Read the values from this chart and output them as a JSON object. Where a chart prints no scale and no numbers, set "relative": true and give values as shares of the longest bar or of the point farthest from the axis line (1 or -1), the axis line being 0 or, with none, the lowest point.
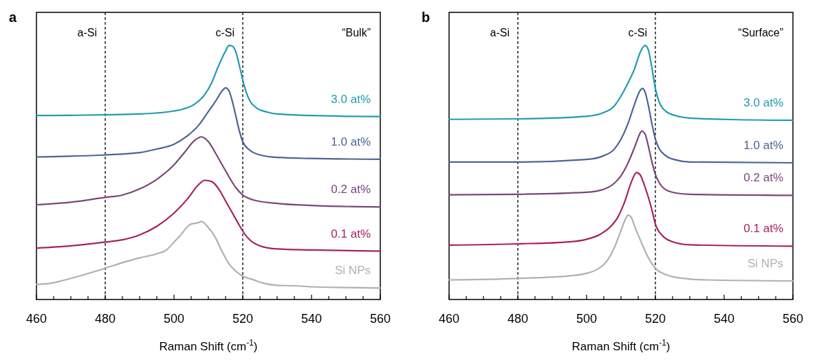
{
  "chart_data": [
    {
      "type": "line",
      "title": "a",
      "xlabel": "Raman Shift (cm$^{-1}$)",
      "relative": true,
      "xlim": [
        460,
        560
      ],
      "xticks": [
        460,
        {
          "value": 465,
          "label": null
        },
        {
          "value": 470,
          "label": null
        },
        {
          "value": 475,
          "label": null
        },
        480,
        {
          "value": 485,
          "label": null
        },
        {
          "value": 490,
          "label": null
        },
        {
          "value": 495,
          "label": null
        },
        500,
        {
          "value": 505,
          "label": null
        },
        {
          "value": 510,
          "label": null
        },
        {
          "value": 515,
          "label": null
        },
        520,
        {
          "value": 525,
          "label": null
        },
        {
          "value": 530,
          "label": null
        },
        {
          "value": 535,
          "label": null
        },
        540,
        {
          "value": 545,
          "label": null
        },
        {
          "value": 550,
          "label": null
        },
        {
          "value": 555,
          "label": null
        },
        560
      ],
      "ref_lines": [
        {
          "axis": "x",
          "value": 480,
          "label": "a-Si",
          "line_style": "dashed",
          "color": "#000000"
        },
        {
          "axis": "x",
          "value": 520,
          "label": "c-Si",
          "line_style": "dashed",
          "color": "#000000"
        }
      ],
      "annotations": [
        "“Bulk”"
      ],
      "series": [
        {
          "name": "3.0 at%",
          "color": "#1f9bb0",
          "x": [
            460,
            470,
            480,
            490,
            495,
            500,
            503,
            506,
            509,
            511,
            513,
            515,
            516,
            517,
            518,
            519,
            520,
            521,
            522,
            524,
            527,
            530,
            540,
            550,
            560
          ],
          "values": [
            0.724,
            0.725,
            0.727,
            0.73,
            0.734,
            0.742,
            0.751,
            0.769,
            0.807,
            0.854,
            0.921,
            0.978,
            1.0,
            0.997,
            0.974,
            0.921,
            0.864,
            0.816,
            0.783,
            0.754,
            0.738,
            0.73,
            0.724,
            0.721,
            0.72
          ]
        },
        {
          "name": "1.0 at%",
          "color": "#4a6494",
          "x": [
            460,
            470,
            480,
            490,
            495,
            500,
            504,
            507,
            510,
            512,
            514,
            515,
            516,
            517,
            518,
            519,
            520,
            522,
            525,
            530,
            540,
            560
          ],
          "values": [
            0.561,
            0.564,
            0.569,
            0.578,
            0.592,
            0.611,
            0.645,
            0.683,
            0.74,
            0.778,
            0.821,
            0.833,
            0.821,
            0.778,
            0.721,
            0.664,
            0.621,
            0.588,
            0.569,
            0.559,
            0.555,
            0.552
          ]
        },
        {
          "name": "0.2 at%",
          "color": "#7a4679",
          "x": [
            460,
            470,
            480,
            485,
            490,
            495,
            500,
            503,
            506,
            508,
            510,
            512,
            514,
            516,
            518,
            520,
            523,
            530,
            540,
            560
          ],
          "values": [
            0.373,
            0.383,
            0.402,
            0.411,
            0.435,
            0.473,
            0.53,
            0.578,
            0.626,
            0.64,
            0.621,
            0.578,
            0.53,
            0.483,
            0.44,
            0.411,
            0.392,
            0.378,
            0.37,
            0.364
          ]
        },
        {
          "name": "0.1 at%",
          "color": "#a82060",
          "x": [
            460,
            470,
            480,
            485,
            490,
            495,
            500,
            504,
            507,
            509,
            511,
            513,
            515,
            517,
            519,
            520,
            522,
            525,
            530,
            540,
            560
          ],
          "values": [
            0.202,
            0.211,
            0.226,
            0.235,
            0.254,
            0.288,
            0.34,
            0.397,
            0.45,
            0.469,
            0.464,
            0.435,
            0.388,
            0.34,
            0.292,
            0.269,
            0.235,
            0.211,
            0.199,
            0.195,
            0.19
          ]
        },
        {
          "name": "Si NPs",
          "color": "#b0b0b0",
          "x": [
            460,
            465,
            470,
            475,
            480,
            485,
            490,
            495,
            498,
            500,
            502,
            504,
            505,
            507,
            508,
            510,
            512,
            514,
            516,
            518,
            520,
            523,
            526,
            530,
            535,
            540,
            550,
            560
          ],
          "values": [
            0.059,
            0.066,
            0.083,
            0.102,
            0.123,
            0.145,
            0.164,
            0.18,
            0.197,
            0.226,
            0.254,
            0.288,
            0.297,
            0.302,
            0.307,
            0.283,
            0.245,
            0.188,
            0.14,
            0.111,
            0.092,
            0.078,
            0.064,
            0.056,
            0.054,
            0.05,
            0.047,
            0.045
          ]
        }
      ]
    },
    {
      "type": "line",
      "title": "b",
      "xlabel": "Raman Shift (cm$^{-1}$)",
      "relative": true,
      "xlim": [
        460,
        560
      ],
      "xticks": [
        460,
        {
          "value": 465,
          "label": null
        },
        {
          "value": 470,
          "label": null
        },
        {
          "value": 475,
          "label": null
        },
        480,
        {
          "value": 485,
          "label": null
        },
        {
          "value": 490,
          "label": null
        },
        {
          "value": 495,
          "label": null
        },
        500,
        {
          "value": 505,
          "label": null
        },
        {
          "value": 510,
          "label": null
        },
        {
          "value": 515,
          "label": null
        },
        520,
        {
          "value": 525,
          "label": null
        },
        {
          "value": 530,
          "label": null
        },
        {
          "value": 535,
          "label": null
        },
        540,
        {
          "value": 545,
          "label": null
        },
        {
          "value": 550,
          "label": null
        },
        {
          "value": 555,
          "label": null
        },
        560
      ],
      "ref_lines": [
        {
          "axis": "x",
          "value": 480,
          "label": "a-Si",
          "line_style": "dashed",
          "color": "#000000"
        },
        {
          "axis": "x",
          "value": 520,
          "label": "c-Si",
          "line_style": "dashed",
          "color": "#000000"
        }
      ],
      "annotations": [
        "“Surface”"
      ],
      "series": [
        {
          "name": "3.0 at%",
          "color": "#1f9bb0",
          "x": [
            460,
            480,
            500,
            505,
            508,
            510,
            512,
            514,
            515.5,
            517,
            518,
            519,
            520,
            521,
            523,
            526,
            530,
            540,
            560
          ],
          "values": [
            0.709,
            0.711,
            0.721,
            0.736,
            0.761,
            0.801,
            0.851,
            0.91,
            0.97,
            1.0,
            0.98,
            0.91,
            0.83,
            0.781,
            0.741,
            0.723,
            0.714,
            0.709,
            0.705
          ]
        },
        {
          "name": "1.0 at%",
          "color": "#4a6494",
          "x": [
            460,
            480,
            500,
            505,
            508,
            510,
            512,
            514,
            515.5,
            516.3,
            517,
            518,
            519,
            520,
            521,
            523,
            526,
            530,
            560
          ],
          "values": [
            0.541,
            0.541,
            0.551,
            0.566,
            0.591,
            0.631,
            0.691,
            0.771,
            0.821,
            0.831,
            0.816,
            0.761,
            0.691,
            0.631,
            0.596,
            0.566,
            0.549,
            0.541,
            0.538
          ]
        },
        {
          "name": "0.2 at%",
          "color": "#7a4679",
          "x": [
            460,
            480,
            500,
            505,
            508,
            510,
            512,
            514,
            515.5,
            516,
            517,
            518,
            519,
            520,
            521,
            523,
            526,
            530,
            560
          ],
          "values": [
            0.412,
            0.414,
            0.422,
            0.434,
            0.457,
            0.487,
            0.536,
            0.601,
            0.653,
            0.663,
            0.651,
            0.601,
            0.541,
            0.492,
            0.462,
            0.432,
            0.419,
            0.414,
            0.41
          ]
        },
        {
          "name": "0.1 at%",
          "color": "#a82060",
          "x": [
            460,
            480,
            495,
            500,
            504,
            507,
            509,
            511,
            513,
            514.5,
            515.5,
            517,
            519,
            520,
            522,
            525,
            530,
            560
          ],
          "values": [
            0.214,
            0.219,
            0.227,
            0.237,
            0.257,
            0.287,
            0.322,
            0.382,
            0.462,
            0.5,
            0.492,
            0.442,
            0.352,
            0.297,
            0.252,
            0.227,
            0.215,
            0.21
          ]
        },
        {
          "name": "Si NPs",
          "color": "#b0b0b0",
          "x": [
            460,
            480,
            495,
            500,
            503,
            506,
            508,
            510,
            511.5,
            512,
            513,
            514,
            516,
            518,
            520,
            523,
            527,
            535,
            560
          ],
          "values": [
            0.077,
            0.083,
            0.093,
            0.103,
            0.118,
            0.153,
            0.202,
            0.272,
            0.322,
            0.332,
            0.322,
            0.287,
            0.222,
            0.163,
            0.123,
            0.098,
            0.085,
            0.077,
            0.073
          ]
        }
      ]
    }
  ]
}
